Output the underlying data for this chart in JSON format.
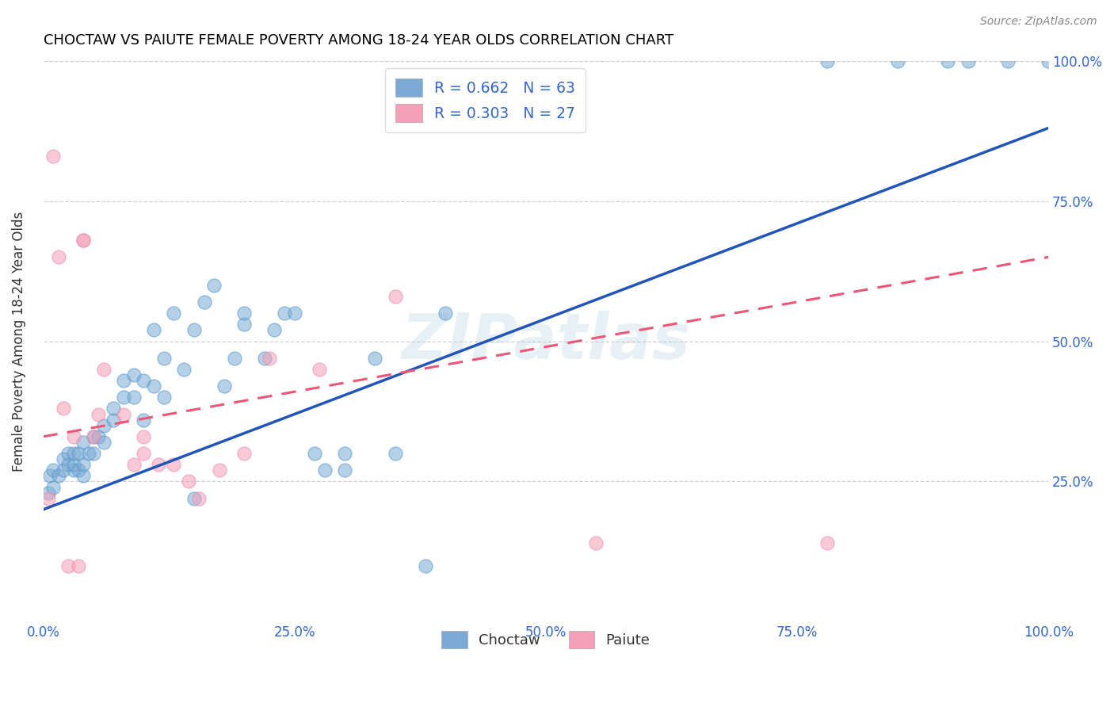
{
  "title": "CHOCTAW VS PAIUTE FEMALE POVERTY AMONG 18-24 YEAR OLDS CORRELATION CHART",
  "source": "Source: ZipAtlas.com",
  "ylabel": "Female Poverty Among 18-24 Year Olds",
  "xlim": [
    0,
    1.0
  ],
  "ylim": [
    0,
    1.0
  ],
  "xtick_positions": [
    0.0,
    0.25,
    0.5,
    0.75,
    1.0
  ],
  "xtick_labels": [
    "0.0%",
    "25.0%",
    "50.0%",
    "75.0%",
    "100.0%"
  ],
  "ytick_labels_right": [
    "25.0%",
    "50.0%",
    "75.0%",
    "100.0%"
  ],
  "choctaw_color": "#7BAAD4",
  "paiute_color": "#F4A0B8",
  "choctaw_line_color": "#2255BB",
  "paiute_line_color": "#EE5577",
  "choctaw_R": "0.662",
  "choctaw_N": "63",
  "paiute_R": "0.303",
  "paiute_N": "27",
  "watermark": "ZIPatlas",
  "choctaw_x": [
    0.005,
    0.007,
    0.01,
    0.01,
    0.015,
    0.02,
    0.02,
    0.025,
    0.025,
    0.03,
    0.03,
    0.03,
    0.035,
    0.035,
    0.04,
    0.04,
    0.04,
    0.045,
    0.05,
    0.05,
    0.055,
    0.06,
    0.06,
    0.07,
    0.07,
    0.08,
    0.08,
    0.09,
    0.09,
    0.1,
    0.1,
    0.11,
    0.11,
    0.12,
    0.12,
    0.13,
    0.14,
    0.15,
    0.15,
    0.16,
    0.17,
    0.18,
    0.19,
    0.2,
    0.2,
    0.22,
    0.23,
    0.24,
    0.25,
    0.27,
    0.28,
    0.3,
    0.3,
    0.33,
    0.35,
    0.38,
    0.4,
    0.78,
    0.85,
    0.9,
    0.92,
    0.96,
    1.0
  ],
  "choctaw_y": [
    0.23,
    0.26,
    0.24,
    0.27,
    0.26,
    0.27,
    0.29,
    0.28,
    0.3,
    0.27,
    0.28,
    0.3,
    0.27,
    0.3,
    0.26,
    0.28,
    0.32,
    0.3,
    0.3,
    0.33,
    0.33,
    0.32,
    0.35,
    0.36,
    0.38,
    0.4,
    0.43,
    0.4,
    0.44,
    0.36,
    0.43,
    0.42,
    0.52,
    0.4,
    0.47,
    0.55,
    0.45,
    0.22,
    0.52,
    0.57,
    0.6,
    0.42,
    0.47,
    0.53,
    0.55,
    0.47,
    0.52,
    0.55,
    0.55,
    0.3,
    0.27,
    0.3,
    0.27,
    0.47,
    0.3,
    0.1,
    0.55,
    1.0,
    1.0,
    1.0,
    1.0,
    1.0,
    1.0
  ],
  "paiute_x": [
    0.005,
    0.01,
    0.015,
    0.02,
    0.025,
    0.03,
    0.035,
    0.04,
    0.04,
    0.05,
    0.055,
    0.06,
    0.08,
    0.09,
    0.1,
    0.1,
    0.115,
    0.13,
    0.145,
    0.155,
    0.175,
    0.2,
    0.225,
    0.275,
    0.35,
    0.55,
    0.78
  ],
  "paiute_y": [
    0.22,
    0.83,
    0.65,
    0.38,
    0.1,
    0.33,
    0.1,
    0.68,
    0.68,
    0.33,
    0.37,
    0.45,
    0.37,
    0.28,
    0.33,
    0.3,
    0.28,
    0.28,
    0.25,
    0.22,
    0.27,
    0.3,
    0.47,
    0.45,
    0.58,
    0.14,
    0.14
  ],
  "choctaw_line_x0": 0.0,
  "choctaw_line_y0": 0.2,
  "choctaw_line_x1": 1.0,
  "choctaw_line_y1": 0.88,
  "paiute_line_x0": 0.0,
  "paiute_line_y0": 0.33,
  "paiute_line_x1": 1.0,
  "paiute_line_y1": 0.65
}
